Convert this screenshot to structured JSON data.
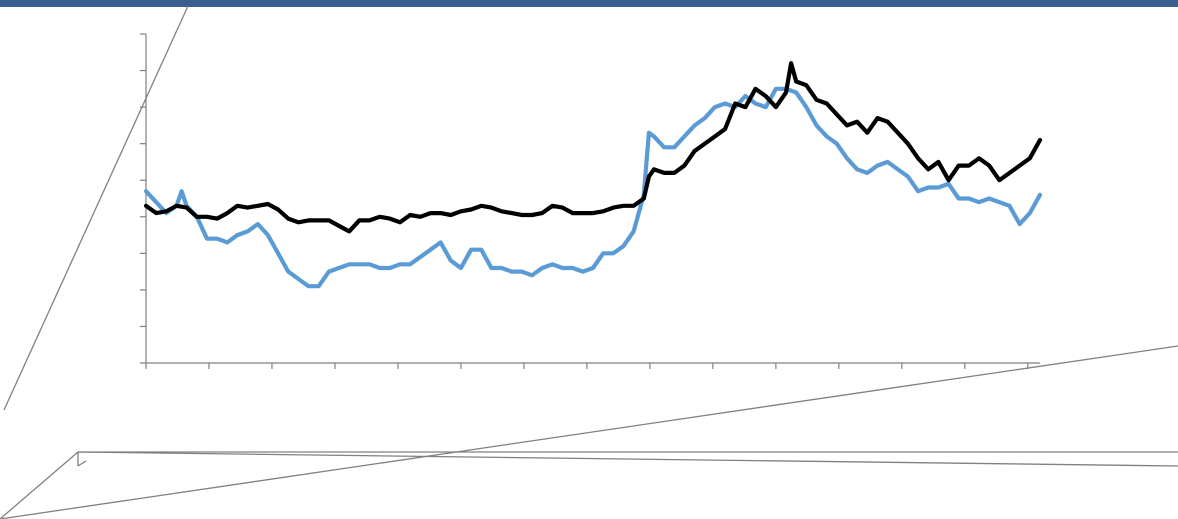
{
  "colors": {
    "header_bar": "#3a5f8f",
    "series_blue": "#5b9bd5",
    "series_black": "#000000",
    "axis": "#808080",
    "background": "#ffffff"
  },
  "chart_data": {
    "type": "line",
    "title": "",
    "xlabel": "",
    "ylabel": "",
    "grid": false,
    "legend": "none",
    "x_range": [
      0,
      880
    ],
    "y_range": [
      0,
      9
    ],
    "y_ticks": [
      0,
      1,
      2,
      3,
      4,
      5,
      6,
      7,
      8,
      9
    ],
    "x_ticks": [
      0,
      62,
      124,
      186,
      248,
      310,
      372,
      434,
      496,
      558,
      620,
      682,
      744,
      806,
      868
    ],
    "series": [
      {
        "color": "#000000",
        "points": [
          [
            0,
            4.3
          ],
          [
            10,
            4.1
          ],
          [
            20,
            4.15
          ],
          [
            30,
            4.3
          ],
          [
            40,
            4.25
          ],
          [
            50,
            4.0
          ],
          [
            60,
            4.0
          ],
          [
            70,
            3.95
          ],
          [
            80,
            4.1
          ],
          [
            90,
            4.3
          ],
          [
            100,
            4.25
          ],
          [
            110,
            4.3
          ],
          [
            120,
            4.35
          ],
          [
            130,
            4.2
          ],
          [
            140,
            3.95
          ],
          [
            150,
            3.85
          ],
          [
            160,
            3.9
          ],
          [
            170,
            3.9
          ],
          [
            180,
            3.9
          ],
          [
            190,
            3.75
          ],
          [
            200,
            3.6
          ],
          [
            210,
            3.9
          ],
          [
            220,
            3.9
          ],
          [
            230,
            4.0
          ],
          [
            240,
            3.95
          ],
          [
            250,
            3.85
          ],
          [
            260,
            4.05
          ],
          [
            270,
            4.0
          ],
          [
            280,
            4.1
          ],
          [
            290,
            4.1
          ],
          [
            300,
            4.05
          ],
          [
            310,
            4.15
          ],
          [
            320,
            4.2
          ],
          [
            330,
            4.3
          ],
          [
            340,
            4.25
          ],
          [
            350,
            4.15
          ],
          [
            360,
            4.1
          ],
          [
            370,
            4.05
          ],
          [
            380,
            4.05
          ],
          [
            390,
            4.1
          ],
          [
            400,
            4.3
          ],
          [
            410,
            4.25
          ],
          [
            420,
            4.1
          ],
          [
            430,
            4.1
          ],
          [
            440,
            4.1
          ],
          [
            450,
            4.15
          ],
          [
            460,
            4.25
          ],
          [
            470,
            4.3
          ],
          [
            480,
            4.3
          ],
          [
            490,
            4.5
          ],
          [
            495,
            5.1
          ],
          [
            500,
            5.3
          ],
          [
            510,
            5.2
          ],
          [
            520,
            5.2
          ],
          [
            530,
            5.4
          ],
          [
            540,
            5.8
          ],
          [
            550,
            6.0
          ],
          [
            560,
            6.2
          ],
          [
            570,
            6.4
          ],
          [
            580,
            7.1
          ],
          [
            590,
            7.0
          ],
          [
            600,
            7.5
          ],
          [
            610,
            7.3
          ],
          [
            620,
            7.0
          ],
          [
            630,
            7.4
          ],
          [
            635,
            8.2
          ],
          [
            640,
            7.7
          ],
          [
            650,
            7.6
          ],
          [
            660,
            7.2
          ],
          [
            670,
            7.1
          ],
          [
            680,
            6.8
          ],
          [
            690,
            6.5
          ],
          [
            700,
            6.6
          ],
          [
            710,
            6.3
          ],
          [
            720,
            6.7
          ],
          [
            730,
            6.6
          ],
          [
            740,
            6.3
          ],
          [
            750,
            6.0
          ],
          [
            760,
            5.6
          ],
          [
            770,
            5.3
          ],
          [
            780,
            5.5
          ],
          [
            790,
            5.0
          ],
          [
            800,
            5.4
          ],
          [
            810,
            5.4
          ],
          [
            820,
            5.6
          ],
          [
            830,
            5.4
          ],
          [
            840,
            5.0
          ],
          [
            850,
            5.2
          ],
          [
            860,
            5.4
          ],
          [
            870,
            5.6
          ],
          [
            880,
            6.1
          ]
        ]
      },
      {
        "color": "#5b9bd5",
        "points": [
          [
            0,
            4.7
          ],
          [
            10,
            4.4
          ],
          [
            20,
            4.1
          ],
          [
            30,
            4.3
          ],
          [
            35,
            4.7
          ],
          [
            40,
            4.3
          ],
          [
            50,
            4.0
          ],
          [
            60,
            3.4
          ],
          [
            70,
            3.4
          ],
          [
            80,
            3.3
          ],
          [
            90,
            3.5
          ],
          [
            100,
            3.6
          ],
          [
            110,
            3.8
          ],
          [
            120,
            3.5
          ],
          [
            130,
            3.0
          ],
          [
            140,
            2.5
          ],
          [
            150,
            2.3
          ],
          [
            160,
            2.1
          ],
          [
            170,
            2.1
          ],
          [
            180,
            2.5
          ],
          [
            190,
            2.6
          ],
          [
            200,
            2.7
          ],
          [
            210,
            2.7
          ],
          [
            220,
            2.7
          ],
          [
            230,
            2.6
          ],
          [
            240,
            2.6
          ],
          [
            250,
            2.7
          ],
          [
            260,
            2.7
          ],
          [
            270,
            2.9
          ],
          [
            280,
            3.1
          ],
          [
            290,
            3.3
          ],
          [
            300,
            2.8
          ],
          [
            310,
            2.6
          ],
          [
            320,
            3.1
          ],
          [
            330,
            3.1
          ],
          [
            340,
            2.6
          ],
          [
            350,
            2.6
          ],
          [
            360,
            2.5
          ],
          [
            370,
            2.5
          ],
          [
            380,
            2.4
          ],
          [
            390,
            2.6
          ],
          [
            400,
            2.7
          ],
          [
            410,
            2.6
          ],
          [
            420,
            2.6
          ],
          [
            430,
            2.5
          ],
          [
            440,
            2.6
          ],
          [
            450,
            3.0
          ],
          [
            460,
            3.0
          ],
          [
            470,
            3.2
          ],
          [
            480,
            3.6
          ],
          [
            490,
            4.6
          ],
          [
            495,
            6.3
          ],
          [
            500,
            6.2
          ],
          [
            510,
            5.9
          ],
          [
            520,
            5.9
          ],
          [
            530,
            6.2
          ],
          [
            540,
            6.5
          ],
          [
            550,
            6.7
          ],
          [
            560,
            7.0
          ],
          [
            570,
            7.1
          ],
          [
            580,
            7.0
          ],
          [
            590,
            7.3
          ],
          [
            600,
            7.1
          ],
          [
            610,
            7.0
          ],
          [
            620,
            7.5
          ],
          [
            630,
            7.5
          ],
          [
            640,
            7.4
          ],
          [
            650,
            7.0
          ],
          [
            660,
            6.5
          ],
          [
            670,
            6.2
          ],
          [
            680,
            6.0
          ],
          [
            690,
            5.6
          ],
          [
            700,
            5.3
          ],
          [
            710,
            5.2
          ],
          [
            720,
            5.4
          ],
          [
            730,
            5.5
          ],
          [
            740,
            5.3
          ],
          [
            750,
            5.1
          ],
          [
            760,
            4.7
          ],
          [
            770,
            4.8
          ],
          [
            780,
            4.8
          ],
          [
            790,
            4.9
          ],
          [
            800,
            4.5
          ],
          [
            810,
            4.5
          ],
          [
            820,
            4.4
          ],
          [
            830,
            4.5
          ],
          [
            840,
            4.4
          ],
          [
            850,
            4.3
          ],
          [
            860,
            3.8
          ],
          [
            870,
            4.1
          ],
          [
            880,
            4.6
          ]
        ]
      }
    ]
  }
}
